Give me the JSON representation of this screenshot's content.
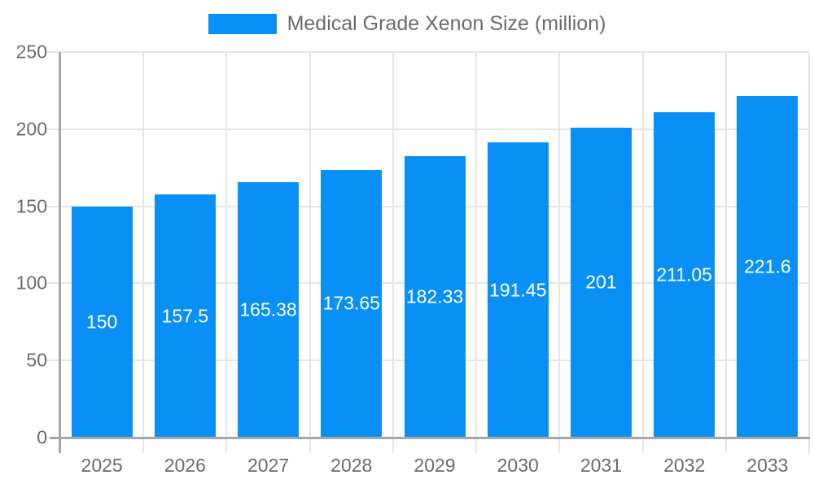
{
  "legend": {
    "label": "Medical Grade Xenon Size (million)"
  },
  "chart_data": {
    "type": "bar",
    "title": "Medical Grade Xenon Size (million)",
    "categories": [
      "2025",
      "2026",
      "2027",
      "2028",
      "2029",
      "2030",
      "2031",
      "2032",
      "2033"
    ],
    "values": [
      150,
      157.5,
      165.38,
      173.65,
      182.33,
      191.45,
      201,
      211.05,
      221.6
    ],
    "value_labels": [
      "150",
      "157.5",
      "165.38",
      "173.65",
      "182.33",
      "191.45",
      "201",
      "211.05",
      "221.6"
    ],
    "xlabel": "",
    "ylabel": "",
    "ylim": [
      0,
      250
    ],
    "ytick_step": 50,
    "ytick_labels": [
      "0",
      "50",
      "100",
      "150",
      "200",
      "250"
    ],
    "grid": true,
    "legend_position": "top",
    "colors": {
      "bar": "#0890F7",
      "value_label": "#ffffff",
      "grid": "#e5e5e5",
      "axis": "#a7a7a7",
      "tick_label": "#6b6b6b",
      "legend_text": "#6b6b6b"
    }
  }
}
